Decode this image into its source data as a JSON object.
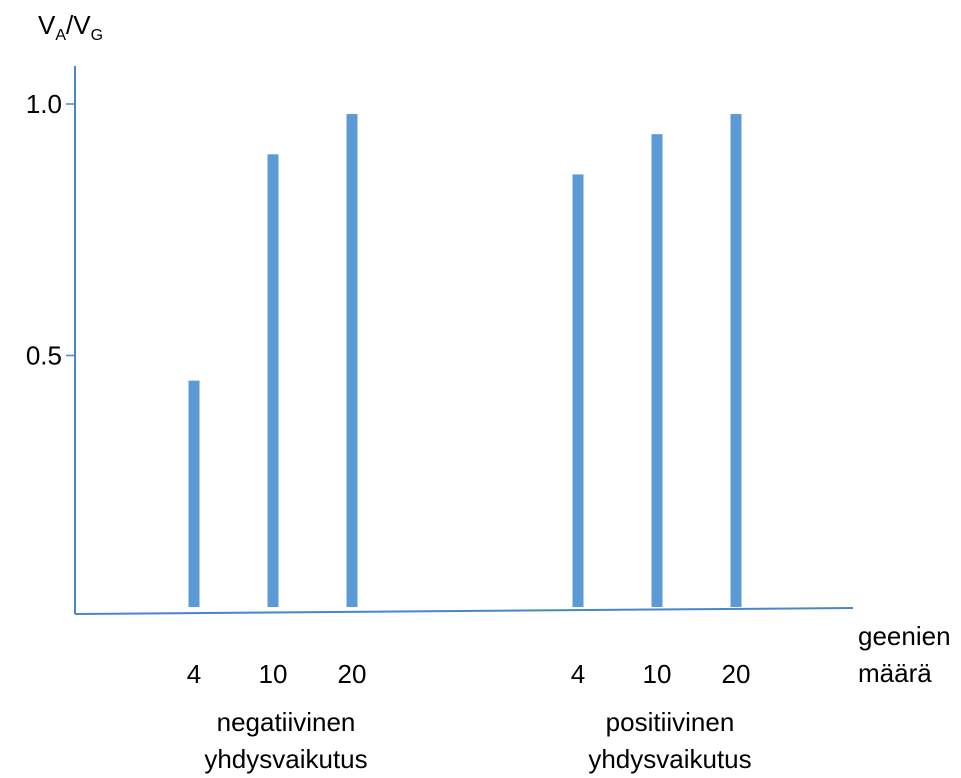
{
  "chart_data": {
    "type": "bar",
    "ylabel": {
      "main": "V",
      "sub_a": "A",
      "sep": "/",
      "main2": "V",
      "sub_g": "G"
    },
    "xlabel_lines": [
      "geenien",
      "määrä"
    ],
    "ylim": [
      0,
      1.0
    ],
    "yticks": [
      {
        "value": 0.5,
        "label": "0.5"
      },
      {
        "value": 1.0,
        "label": "1.0"
      }
    ],
    "groups": [
      {
        "label_lines": [
          "negatiivinen",
          "yhdysvaikutus"
        ],
        "categories": [
          "4",
          "10",
          "20"
        ],
        "values": [
          0.45,
          0.9,
          0.98
        ]
      },
      {
        "label_lines": [
          "positiivinen",
          "yhdysvaikutus"
        ],
        "categories": [
          "4",
          "10",
          "20"
        ],
        "values": [
          0.86,
          0.94,
          0.98
        ]
      }
    ],
    "bar_color": "#5b9bd5",
    "axis_color": "#4a86c8"
  }
}
